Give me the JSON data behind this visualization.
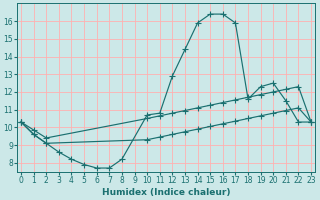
{
  "xlabel": "Humidex (Indice chaleur)",
  "bg_color": "#cce8e8",
  "grid_color": "#ffb0b0",
  "line_color": "#1a7070",
  "xlim": [
    0,
    23
  ],
  "ylim": [
    7.5,
    17.0
  ],
  "xticks": [
    0,
    1,
    2,
    3,
    4,
    5,
    6,
    7,
    8,
    9,
    10,
    11,
    12,
    13,
    14,
    15,
    16,
    17,
    18,
    19,
    20,
    21,
    22,
    23
  ],
  "yticks": [
    8,
    9,
    10,
    11,
    12,
    13,
    14,
    15,
    16
  ],
  "main_x": [
    0,
    1,
    2,
    3,
    4,
    5,
    6,
    7,
    8,
    10,
    11,
    12,
    13,
    14,
    15,
    16,
    17,
    18,
    19,
    20,
    21,
    22,
    23
  ],
  "main_y": [
    10.3,
    9.6,
    9.1,
    8.6,
    8.2,
    7.9,
    7.7,
    7.7,
    8.2,
    10.7,
    10.8,
    12.9,
    14.4,
    15.9,
    16.4,
    16.4,
    15.9,
    11.6,
    12.3,
    12.5,
    11.5,
    10.3,
    10.3
  ],
  "up_x": [
    0,
    1,
    2,
    10,
    11,
    12,
    13,
    14,
    15,
    16,
    17,
    18,
    19,
    20,
    21,
    22,
    23
  ],
  "up_y": [
    10.3,
    9.85,
    9.4,
    10.5,
    10.65,
    10.8,
    10.95,
    11.1,
    11.25,
    11.4,
    11.55,
    11.7,
    11.85,
    12.0,
    12.15,
    12.3,
    10.3
  ],
  "lo_x": [
    0,
    1,
    2,
    10,
    11,
    12,
    13,
    14,
    15,
    16,
    17,
    18,
    19,
    20,
    21,
    22,
    23
  ],
  "lo_y": [
    10.3,
    9.6,
    9.1,
    9.3,
    9.45,
    9.6,
    9.75,
    9.9,
    10.05,
    10.2,
    10.35,
    10.5,
    10.65,
    10.8,
    10.95,
    11.1,
    10.3
  ]
}
